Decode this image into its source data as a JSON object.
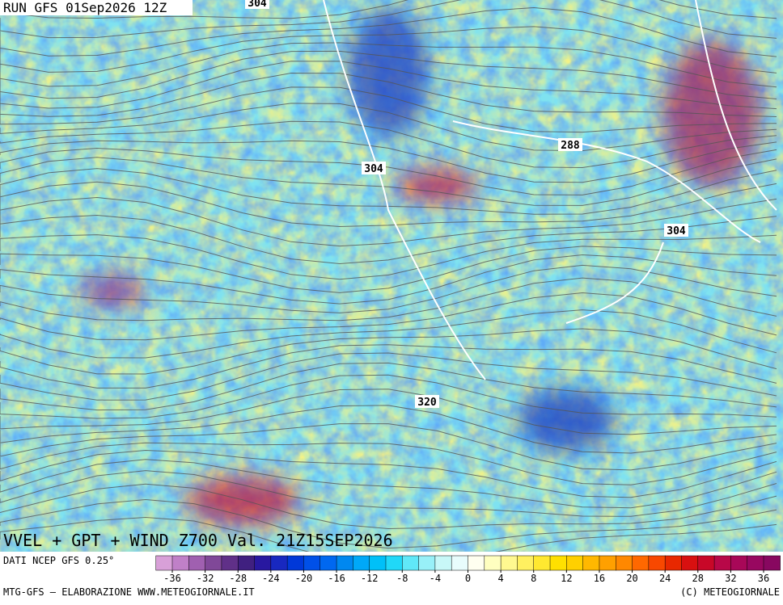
{
  "header": {
    "run": "RUN GFS 01Sep2026 12Z"
  },
  "map": {
    "contour_labels": [
      "304",
      "304",
      "288",
      "304",
      "320"
    ]
  },
  "footer": {
    "title": "VVEL + GPT + WIND Z700 Val. 21Z15SEP2026",
    "source": "DATI NCEP GFS 0.25°",
    "credit_left": "MTG-GFS — ELABORAZIONE WWW.METEOGIORNALE.IT",
    "credit_right": "(C) METEOGIORNALE"
  },
  "colorbar": {
    "colors": [
      "#d8a0d8",
      "#c080c8",
      "#a060b0",
      "#804898",
      "#603088",
      "#402080",
      "#2818a0",
      "#1828c0",
      "#0038d8",
      "#0050e8",
      "#0068f0",
      "#0088f0",
      "#00a8f8",
      "#00c0f8",
      "#20d8f8",
      "#60e8f8",
      "#98f0f8",
      "#c8f8f8",
      "#e8fcfc",
      "#fffff0",
      "#ffffc0",
      "#fff890",
      "#fff060",
      "#ffe830",
      "#ffe000",
      "#ffd000",
      "#ffb800",
      "#ffa000",
      "#ff8800",
      "#ff6800",
      "#f84800",
      "#e82800",
      "#d81010",
      "#c80828",
      "#b80848",
      "#a80858",
      "#980860",
      "#880860"
    ],
    "ticks": [
      -36,
      -32,
      -28,
      -24,
      -20,
      -16,
      -12,
      -8,
      -4,
      0,
      4,
      8,
      12,
      16,
      20,
      24,
      28,
      32,
      36
    ]
  }
}
